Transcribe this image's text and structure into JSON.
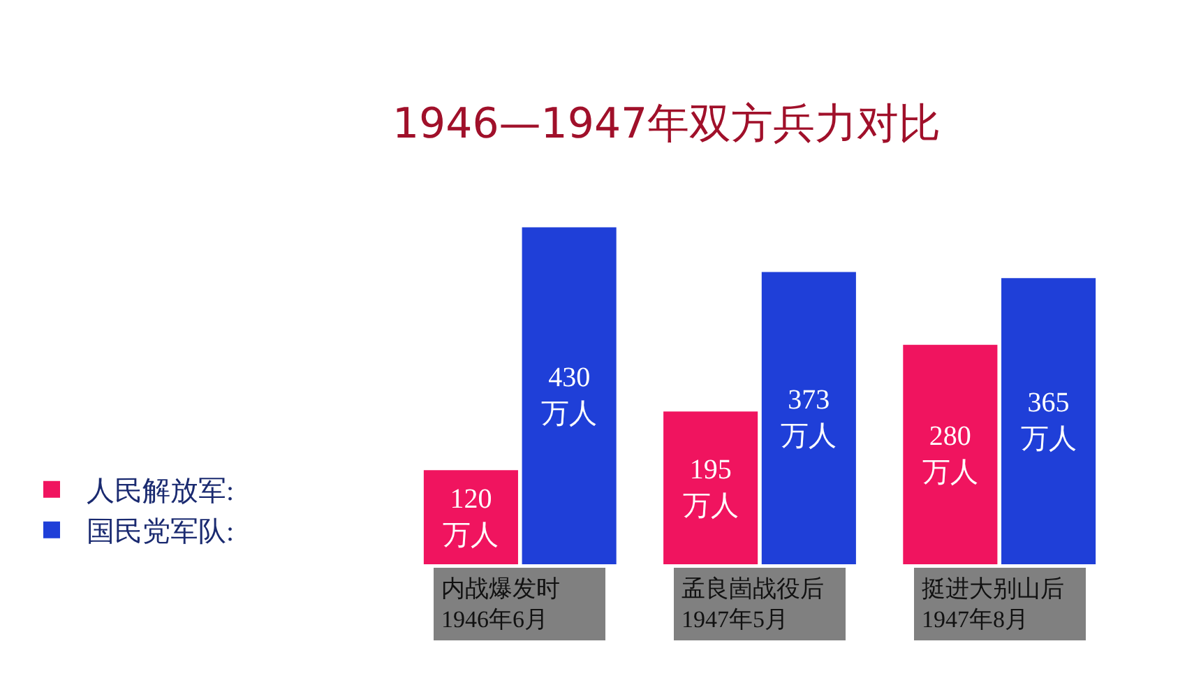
{
  "chart_data": {
    "type": "bar",
    "title": "1946—1947年双方兵力对比",
    "categories": [
      "内战爆发时\n1946年6月",
      "孟良崮战役后\n1947年5月",
      "挺进大别山后\n1947年8月"
    ],
    "series": [
      {
        "name": "人民解放军:",
        "color": "#f0145f",
        "values": [
          120,
          195,
          280
        ],
        "value_labels": [
          "120\n万人",
          "195\n万人",
          "280\n万人"
        ]
      },
      {
        "name": "国民党军队:",
        "color": "#1f3fd8",
        "values": [
          430,
          373,
          365
        ],
        "value_labels": [
          "430\n万人",
          "373\n万人",
          "365\n万人"
        ]
      }
    ],
    "legend": "bottom left",
    "grid": false,
    "tick_labels": "x"
  }
}
